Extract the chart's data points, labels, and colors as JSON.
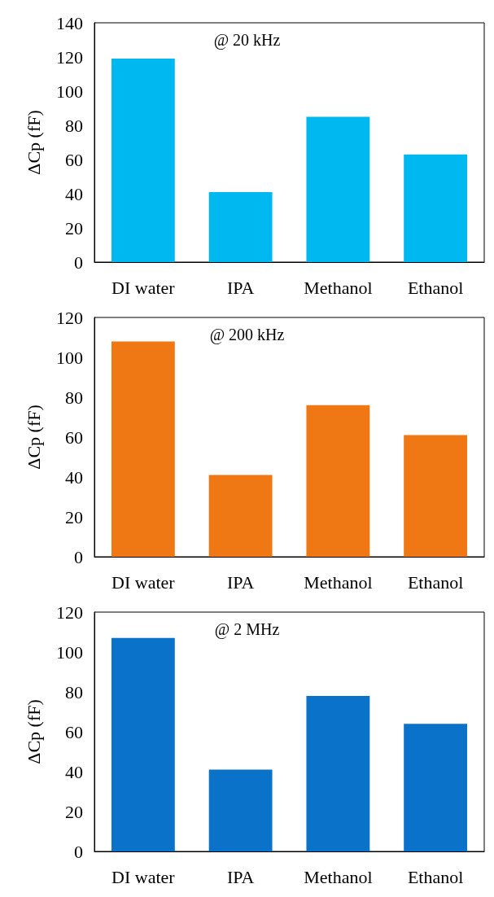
{
  "chart_data": [
    {
      "type": "bar",
      "title": "@ 20 kHz",
      "ylabel": "ΔCp (fF)",
      "categories": [
        "DI water",
        "IPA",
        "Methanol",
        "Ethanol"
      ],
      "values": [
        119,
        41,
        85,
        63
      ],
      "color": "#00b8f0",
      "ylim": [
        0,
        140
      ],
      "yticks": [
        0,
        20,
        40,
        60,
        80,
        100,
        120,
        140
      ],
      "grid": false
    },
    {
      "type": "bar",
      "title": "@ 200 kHz",
      "ylabel": "ΔCp (fF)",
      "categories": [
        "DI water",
        "IPA",
        "Methanol",
        "Ethanol"
      ],
      "values": [
        108,
        41,
        76,
        61
      ],
      "color": "#f07814",
      "ylim": [
        0,
        120
      ],
      "yticks": [
        0,
        20,
        40,
        60,
        80,
        100,
        120
      ],
      "grid": false
    },
    {
      "type": "bar",
      "title": "@ 2 MHz",
      "ylabel": "ΔCp (fF)",
      "categories": [
        "DI water",
        "IPA",
        "Methanol",
        "Ethanol"
      ],
      "values": [
        107,
        41,
        78,
        64
      ],
      "color": "#0a72c8",
      "ylim": [
        0,
        120
      ],
      "yticks": [
        0,
        20,
        40,
        60,
        80,
        100,
        120
      ],
      "grid": false
    }
  ]
}
